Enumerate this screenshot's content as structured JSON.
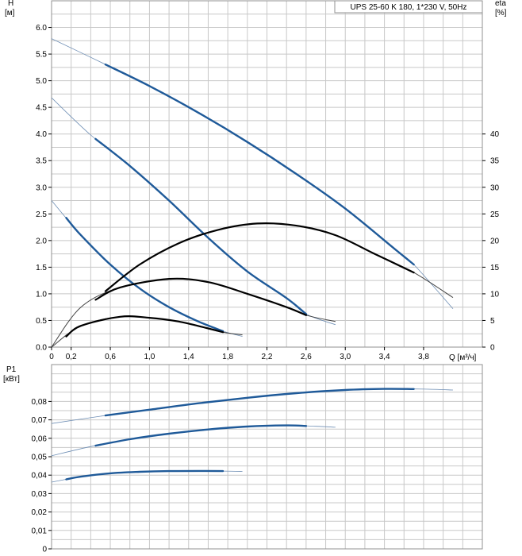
{
  "chart_data": [
    {
      "type": "line",
      "title": "UPS 25-60 K 180, 1*230 V, 50Hz",
      "ylabel": "H",
      "ylabel_unit": "[м]",
      "y2label": "eta",
      "y2label_unit": "[%]",
      "xlabel": "Q [м³/ч]",
      "xlim": [
        0,
        4.4
      ],
      "ylim": [
        0,
        6.5
      ],
      "y2lim": [
        0,
        65
      ],
      "xticks": [
        "0",
        "0,2",
        "0,6",
        "1,0",
        "1,4",
        "1,8",
        "2,2",
        "2,6",
        "3,0",
        "3,4",
        "3,8"
      ],
      "xtick_values": [
        0,
        0.2,
        0.6,
        1.0,
        1.4,
        1.8,
        2.2,
        2.6,
        3.0,
        3.4,
        3.8
      ],
      "yticks": [
        "0.0",
        "0.5",
        "1.0",
        "1.5",
        "2.0",
        "2.5",
        "3.0",
        "3.5",
        "4.0",
        "4.5",
        "5.0",
        "5.5",
        "6.0"
      ],
      "ytick_values": [
        0,
        0.5,
        1.0,
        1.5,
        2.0,
        2.5,
        3.0,
        3.5,
        4.0,
        4.5,
        5.0,
        5.5,
        6.0
      ],
      "y2ticks": [
        "0",
        "5",
        "10",
        "15",
        "20",
        "25",
        "30",
        "35",
        "40"
      ],
      "y2tick_values": [
        0,
        5,
        10,
        15,
        20,
        25,
        30,
        35,
        40
      ],
      "grid": true,
      "series": [
        {
          "kind": "head",
          "color": "#1f5a99",
          "values": [
            [
              0,
              5.79
            ],
            [
              0.5,
              5.35
            ],
            [
              1.0,
              4.9
            ],
            [
              1.5,
              4.4
            ],
            [
              2.0,
              3.85
            ],
            [
              2.5,
              3.25
            ],
            [
              3.0,
              2.6
            ],
            [
              3.5,
              1.85
            ],
            [
              3.7,
              1.55
            ],
            [
              4.1,
              0.72
            ]
          ],
          "bold": [
            0.55,
            3.7
          ]
        },
        {
          "kind": "head",
          "color": "#1f5a99",
          "values": [
            [
              0,
              4.68
            ],
            [
              0.4,
              3.98
            ],
            [
              0.8,
              3.4
            ],
            [
              1.2,
              2.75
            ],
            [
              1.6,
              2.05
            ],
            [
              2.0,
              1.42
            ],
            [
              2.4,
              0.92
            ],
            [
              2.6,
              0.62
            ],
            [
              2.9,
              0.42
            ]
          ],
          "bold": [
            0.45,
            2.6
          ]
        },
        {
          "kind": "head",
          "color": "#1f5a99",
          "values": [
            [
              0,
              2.75
            ],
            [
              0.3,
              2.1
            ],
            [
              0.6,
              1.55
            ],
            [
              0.9,
              1.1
            ],
            [
              1.2,
              0.75
            ],
            [
              1.5,
              0.48
            ],
            [
              1.75,
              0.3
            ],
            [
              1.95,
              0.2
            ]
          ],
          "bold": [
            0.15,
            1.75
          ]
        },
        {
          "kind": "eta",
          "color": "#000000",
          "values": [
            [
              0.55,
              10.5
            ],
            [
              0.9,
              15.5
            ],
            [
              1.3,
              19.5
            ],
            [
              1.7,
              22.0
            ],
            [
              2.1,
              23.2
            ],
            [
              2.5,
              22.8
            ],
            [
              2.9,
              21.0
            ],
            [
              3.3,
              17.5
            ],
            [
              3.7,
              14.0
            ],
            [
              4.1,
              9.3
            ]
          ],
          "bold": [
            0.55,
            3.7
          ]
        },
        {
          "kind": "eta",
          "color": "#000000",
          "values": [
            [
              0,
              0
            ],
            [
              0.3,
              7.5
            ],
            [
              0.7,
              11.2
            ],
            [
              1.2,
              12.8
            ],
            [
              1.6,
              12.2
            ],
            [
              2.0,
              10.0
            ],
            [
              2.4,
              7.5
            ],
            [
              2.6,
              6.0
            ],
            [
              2.9,
              4.8
            ]
          ],
          "bold": [
            0.45,
            2.6
          ]
        },
        {
          "kind": "eta",
          "color": "#000000",
          "values": [
            [
              0,
              0
            ],
            [
              0.3,
              4.0
            ],
            [
              0.7,
              5.7
            ],
            [
              1.0,
              5.5
            ],
            [
              1.3,
              4.8
            ],
            [
              1.6,
              3.5
            ],
            [
              1.75,
              2.8
            ],
            [
              1.95,
              2.3
            ]
          ],
          "bold": [
            0.15,
            1.75
          ]
        }
      ]
    },
    {
      "type": "line",
      "ylabel": "P1",
      "ylabel_unit": "[кВт]",
      "xlim": [
        0,
        4.4
      ],
      "ylim": [
        0,
        0.1
      ],
      "yticks": [
        "0",
        "0,01",
        "0,02",
        "0,03",
        "0,04",
        "0,05",
        "0,06",
        "0,07",
        "0,08"
      ],
      "ytick_values": [
        0,
        0.01,
        0.02,
        0.03,
        0.04,
        0.05,
        0.06,
        0.07,
        0.08
      ],
      "grid": true,
      "series": [
        {
          "kind": "power",
          "color": "#1f5a99",
          "values": [
            [
              0,
              0.068
            ],
            [
              0.5,
              0.072
            ],
            [
              1.0,
              0.0755
            ],
            [
              1.5,
              0.079
            ],
            [
              2.0,
              0.082
            ],
            [
              2.5,
              0.0845
            ],
            [
              3.0,
              0.0862
            ],
            [
              3.4,
              0.0868
            ],
            [
              3.8,
              0.0867
            ],
            [
              4.1,
              0.0862
            ]
          ],
          "bold": [
            0.55,
            3.7
          ]
        },
        {
          "kind": "power",
          "color": "#1f5a99",
          "values": [
            [
              0,
              0.0505
            ],
            [
              0.4,
              0.0555
            ],
            [
              0.8,
              0.0595
            ],
            [
              1.2,
              0.0625
            ],
            [
              1.6,
              0.0648
            ],
            [
              2.0,
              0.0664
            ],
            [
              2.4,
              0.067
            ],
            [
              2.7,
              0.0665
            ],
            [
              2.9,
              0.066
            ]
          ],
          "bold": [
            0.45,
            2.6
          ]
        },
        {
          "kind": "power",
          "color": "#1f5a99",
          "values": [
            [
              0,
              0.0362
            ],
            [
              0.3,
              0.0392
            ],
            [
              0.6,
              0.041
            ],
            [
              0.9,
              0.0418
            ],
            [
              1.2,
              0.0422
            ],
            [
              1.5,
              0.0423
            ],
            [
              1.75,
              0.0422
            ],
            [
              1.95,
              0.042
            ]
          ],
          "bold": [
            0.15,
            1.75
          ]
        }
      ]
    }
  ]
}
